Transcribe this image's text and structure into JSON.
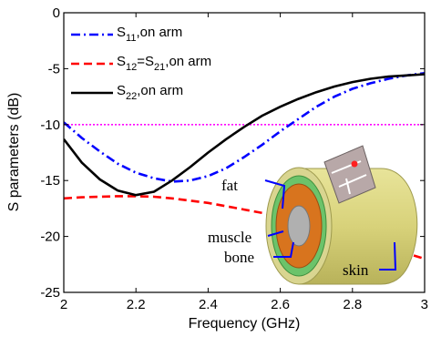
{
  "chart_data": {
    "type": "line",
    "xlabel": "Frequency (GHz)",
    "ylabel": "S parameters (dB)",
    "xlim": [
      2,
      3
    ],
    "ylim": [
      -25,
      0
    ],
    "x_ticks": [
      2,
      2.2,
      2.4,
      2.6,
      2.8,
      3
    ],
    "y_ticks": [
      0,
      -5,
      -10,
      -15,
      -20,
      -25
    ],
    "x_tick_labels": [
      "2",
      "2.2",
      "2.4",
      "2.6",
      "2.8",
      "3"
    ],
    "y_tick_labels": [
      "0",
      "-5",
      "-10",
      "-15",
      "-20",
      "-25"
    ],
    "grid": false,
    "legend_position": "top-left",
    "reference_line": {
      "y": -10,
      "color": "#ff00ff"
    },
    "series": [
      {
        "legend_parts": [
          {
            "text": "S",
            "sub": false
          },
          {
            "text": "11",
            "sub": true
          },
          {
            "text": ",on arm",
            "sub": false
          }
        ],
        "color": "#0000ff",
        "style": "dash-dot",
        "x": [
          2.0,
          2.05,
          2.1,
          2.15,
          2.2,
          2.25,
          2.3,
          2.35,
          2.4,
          2.45,
          2.5,
          2.55,
          2.6,
          2.65,
          2.7,
          2.75,
          2.8,
          2.85,
          2.9,
          2.95,
          3.0
        ],
        "y": [
          -9.8,
          -11.2,
          -12.4,
          -13.5,
          -14.3,
          -14.8,
          -15.1,
          -15.0,
          -14.6,
          -13.9,
          -12.9,
          -11.8,
          -10.6,
          -9.5,
          -8.4,
          -7.5,
          -6.8,
          -6.3,
          -5.9,
          -5.6,
          -5.4
        ]
      },
      {
        "legend_parts": [
          {
            "text": "S",
            "sub": false
          },
          {
            "text": "12",
            "sub": true
          },
          {
            "text": "=S",
            "sub": false
          },
          {
            "text": "21",
            "sub": true
          },
          {
            "text": ",on arm",
            "sub": false
          }
        ],
        "color": "#ff0000",
        "style": "dashed",
        "x": [
          2.0,
          2.05,
          2.1,
          2.15,
          2.2,
          2.25,
          2.3,
          2.35,
          2.4,
          2.45,
          2.5,
          2.55,
          2.6,
          2.65,
          2.7,
          2.75,
          2.8,
          2.85,
          2.9,
          2.95,
          3.0
        ],
        "y": [
          -16.6,
          -16.5,
          -16.45,
          -16.4,
          -16.4,
          -16.45,
          -16.6,
          -16.8,
          -17.0,
          -17.3,
          -17.6,
          -17.9,
          -18.3,
          -18.7,
          -19.1,
          -19.5,
          -20.0,
          -20.5,
          -21.0,
          -21.5,
          -22.0
        ]
      },
      {
        "legend_parts": [
          {
            "text": "S",
            "sub": false
          },
          {
            "text": "22",
            "sub": true
          },
          {
            "text": ",on arm",
            "sub": false
          }
        ],
        "color": "#000000",
        "style": "solid",
        "x": [
          2.0,
          2.05,
          2.1,
          2.15,
          2.2,
          2.25,
          2.3,
          2.35,
          2.4,
          2.45,
          2.5,
          2.55,
          2.6,
          2.65,
          2.7,
          2.75,
          2.8,
          2.85,
          2.9,
          2.95,
          3.0
        ],
        "y": [
          -11.3,
          -13.4,
          -14.9,
          -15.9,
          -16.3,
          -16.0,
          -15.0,
          -13.8,
          -12.5,
          -11.3,
          -10.2,
          -9.2,
          -8.4,
          -7.7,
          -7.1,
          -6.6,
          -6.2,
          -5.9,
          -5.7,
          -5.6,
          -5.5
        ]
      }
    ],
    "inset_labels": [
      "fat",
      "muscle",
      "bone",
      "skin"
    ]
  }
}
